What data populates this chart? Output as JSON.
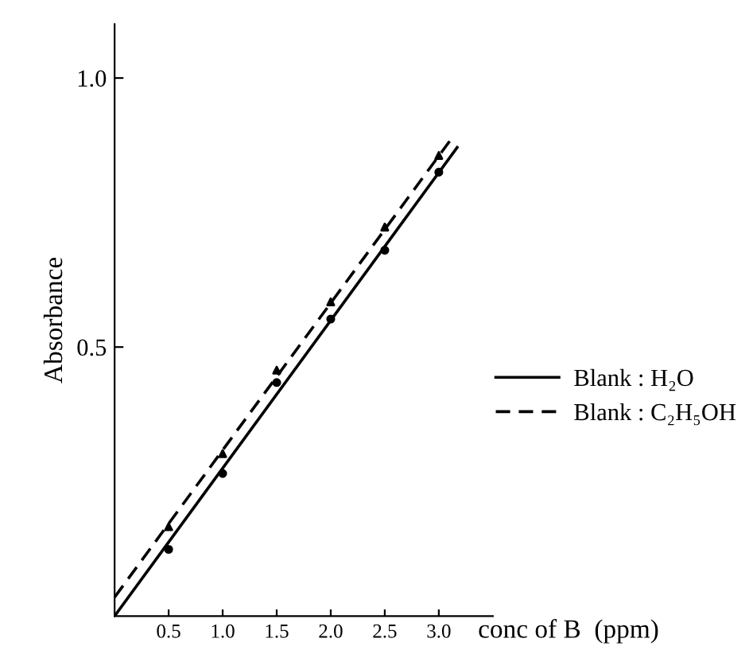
{
  "chart_data": {
    "type": "line",
    "xlabel": "conc of B  (ppm)",
    "ylabel": "Absorbance",
    "xlim": [
      0,
      3.5
    ],
    "ylim": [
      0,
      1.1
    ],
    "xticks": [
      0.5,
      {
        "value": 1,
        "label": "1.0"
      },
      1.5,
      {
        "value": 2,
        "label": "2.0"
      },
      2.5,
      {
        "value": 3,
        "label": "3.0"
      }
    ],
    "yticks": [
      0.5,
      {
        "value": 1,
        "label": "1.0"
      }
    ],
    "grid": false,
    "legend": "right",
    "series": [
      {
        "name": "Blank : H₂O",
        "color": "#000000",
        "line_style": "solid",
        "marker": "none",
        "x": [
          0,
          3.17
        ],
        "values": [
          0,
          0.871
        ]
      },
      {
        "name": "Blank : C₂H₅OH",
        "color": "#000000",
        "line_style": "dashed",
        "marker": "none",
        "x": [
          0,
          3.12
        ],
        "values": [
          0.035,
          0.888
        ]
      },
      {
        "type": "scatter",
        "color": "#000000",
        "marker": "circle",
        "x": [
          0.5,
          1.0,
          1.5,
          2.0,
          2.5,
          3.0
        ],
        "values": [
          0.124,
          0.265,
          0.434,
          0.552,
          0.68,
          0.825
        ]
      },
      {
        "type": "scatter",
        "color": "#000000",
        "marker": "triangle",
        "x": [
          0.5,
          1.0,
          1.5,
          2.0,
          2.5,
          3.0
        ],
        "values": [
          0.166,
          0.302,
          0.457,
          0.584,
          0.723,
          0.856
        ]
      }
    ]
  }
}
